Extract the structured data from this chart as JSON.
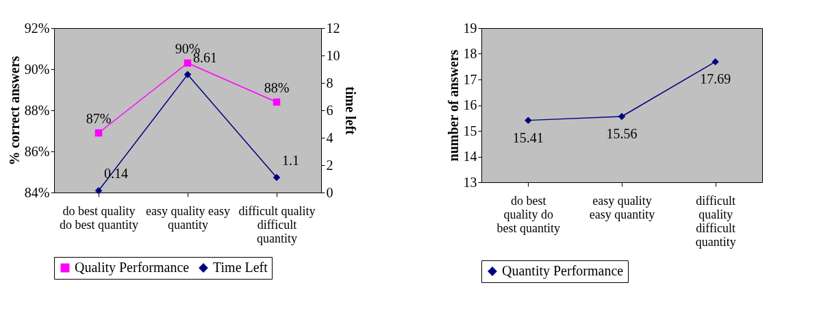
{
  "chart_data": [
    {
      "type": "line",
      "ylabel": "% correct answers",
      "y2label": "time left",
      "categories": [
        "do best quality do best quantity",
        "easy quality easy quantity",
        "difficult quality difficult quantity"
      ],
      "series": [
        {
          "name": "Quality Performance",
          "color": "#ff00ff",
          "marker": "square",
          "values": [
            86.9,
            90.3,
            88.4
          ],
          "value_labels": [
            "87%",
            "90%",
            "88%"
          ]
        },
        {
          "name": "Time Left",
          "color": "#000080",
          "marker": "diamond",
          "axis": "y2",
          "values": [
            0.14,
            8.61,
            1.1
          ],
          "value_labels": [
            "0.14",
            "8.61",
            "1.1"
          ]
        }
      ],
      "ylim": [
        84,
        92
      ],
      "yticks": [
        {
          "value": 84,
          "label": "84%"
        },
        {
          "value": 86,
          "label": "86%"
        },
        {
          "value": 88,
          "label": "88%"
        },
        {
          "value": 90,
          "label": "90%"
        },
        {
          "value": 92,
          "label": "92%"
        }
      ],
      "y2lim": [
        0,
        12
      ],
      "y2ticks": [
        0,
        2,
        4,
        6,
        8,
        10,
        12
      ],
      "legend": "bottom",
      "grid": false
    },
    {
      "type": "line",
      "ylabel": "number of answers",
      "categories": [
        "do best quality do best quantity",
        "easy quality easy quantity",
        "difficult quality difficult quantity"
      ],
      "series": [
        {
          "name": "Quantity Performance",
          "color": "#000080",
          "marker": "diamond",
          "values": [
            15.41,
            15.56,
            17.69
          ]
        }
      ],
      "ylim": [
        13,
        19
      ],
      "yticks": [
        13,
        14,
        15,
        16,
        17,
        18,
        19
      ],
      "data_labels": true,
      "legend": "bottom",
      "grid": false
    }
  ]
}
